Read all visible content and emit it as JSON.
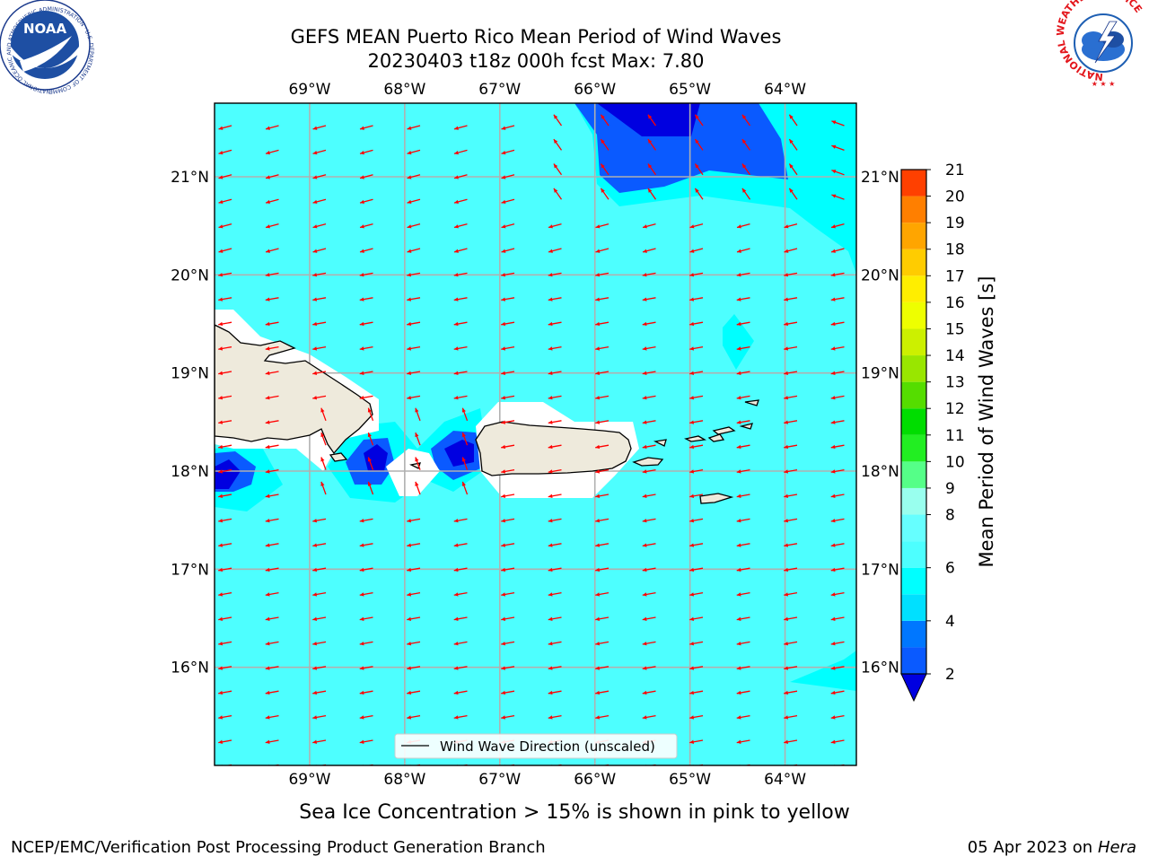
{
  "title": {
    "line1": "GEFS MEAN Puerto Rico Mean Period of Wind Waves",
    "line2": "20230403 t18z 000h fcst   Max: 7.80"
  },
  "map": {
    "lon_range": [
      -70.0,
      -63.25
    ],
    "lat_range": [
      15.0,
      21.75
    ],
    "lon_ticks": [
      {
        "value": -69,
        "label": "69°W"
      },
      {
        "value": -68,
        "label": "68°W"
      },
      {
        "value": -67,
        "label": "67°W"
      },
      {
        "value": -66,
        "label": "66°W"
      },
      {
        "value": -65,
        "label": "65°W"
      },
      {
        "value": -64,
        "label": "64°W"
      }
    ],
    "lat_ticks": [
      {
        "value": 21,
        "label": "21°N"
      },
      {
        "value": 20,
        "label": "20°N"
      },
      {
        "value": 19,
        "label": "19°N"
      },
      {
        "value": 18,
        "label": "18°N"
      },
      {
        "value": 17,
        "label": "17°N"
      },
      {
        "value": 16,
        "label": "16°N"
      }
    ],
    "ocean_color": "#4dffff",
    "land_color": "#eeeadc",
    "arrow_color": "#ff0000",
    "legend_label": "Wind Wave Direction (unscaled)"
  },
  "colorbar": {
    "label": "Mean Period of Wind Waves [s]",
    "levels": [
      2,
      3,
      4,
      5,
      6,
      7,
      8,
      9,
      10,
      11,
      12,
      13,
      14,
      15,
      16,
      17,
      18,
      19,
      20,
      21
    ],
    "tick_labels": [
      "2",
      "4",
      "6",
      "8",
      "9",
      "10",
      "11",
      "12",
      "13",
      "14",
      "15",
      "16",
      "17",
      "18",
      "19",
      "20",
      "21"
    ],
    "colors": [
      "#0000e0",
      "#0a5aff",
      "#0077ff",
      "#00e0ff",
      "#00ffff",
      "#4dffff",
      "#66ffff",
      "#99ffee",
      "#55ff88",
      "#22ee22",
      "#00dd00",
      "#55dd00",
      "#99e600",
      "#ccf000",
      "#eeff00",
      "#ffee00",
      "#ffcc00",
      "#ffa500",
      "#ff7f00",
      "#ff4000",
      "#ff0000"
    ]
  },
  "subtitle": "Sea Ice Concentration > 15% is shown in pink to yellow",
  "footer": {
    "left": "NCEP/EMC/Verification Post Processing Product Generation Branch",
    "right_date": "05 Apr 2023 on ",
    "right_machine": "Hera"
  },
  "logos": {
    "noaa": {
      "text": "NOAA",
      "ring": "NATIONAL OCEANIC AND ATMOSPHERIC ADMINISTRATION · U.S. DEPARTMENT OF COMMERCE"
    },
    "nws": {
      "ring": "NATIONAL WEATHER SERVICE"
    }
  }
}
